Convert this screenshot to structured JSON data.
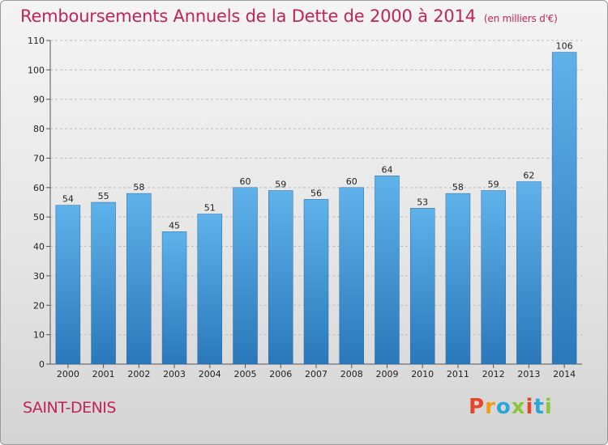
{
  "title": "Remboursements Annuels de la Dette de 2000 à 2014",
  "unit": "(en milliers d'€)",
  "commune": "SAINT-DENIS",
  "logo": "Proxiti",
  "logo_colors": [
    "#e8462a",
    "#f39a1c",
    "#2aa7d8",
    "#8cc63f",
    "#e8462a",
    "#2aa7d8",
    "#8cc63f"
  ],
  "chart_data": {
    "type": "bar",
    "categories": [
      "2000",
      "2001",
      "2002",
      "2003",
      "2004",
      "2005",
      "2006",
      "2007",
      "2008",
      "2009",
      "2010",
      "2011",
      "2012",
      "2013",
      "2014"
    ],
    "values": [
      54,
      55,
      58,
      45,
      51,
      60,
      59,
      56,
      60,
      64,
      53,
      58,
      59,
      62,
      106
    ],
    "ylim": [
      0,
      110
    ],
    "yticks": [
      0,
      10,
      20,
      30,
      40,
      50,
      60,
      70,
      80,
      90,
      100,
      110
    ],
    "grid": true,
    "bar_color": "#4a9fdc"
  }
}
